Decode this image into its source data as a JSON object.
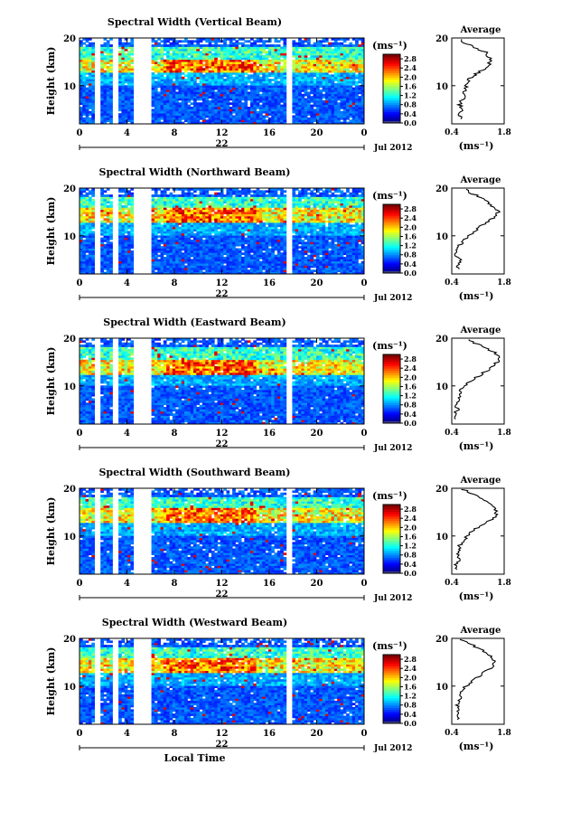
{
  "figure": {
    "x_axis_title": "Local Time",
    "date_label": "Jul 2012",
    "day_label": "22",
    "colorbar_unit": "(ms⁻¹)",
    "profile_title": "Average",
    "profile_unit": "(ms⁻¹)",
    "y_axis_title": "Height (km)"
  },
  "chart_data": [
    {
      "type": "heatmap",
      "title": "Spectral Width (Vertical Beam)",
      "ylabel": "Height (km)",
      "xlabel": "",
      "x_ticks": [
        "0",
        "4",
        "8",
        "12",
        "16",
        "20",
        "0"
      ],
      "y_ticks": [
        "10",
        "20"
      ],
      "xlim": [
        0,
        24
      ],
      "ylim": [
        2,
        20
      ],
      "colorbar": {
        "unit": "(ms⁻¹)",
        "ticks": [
          "2.8",
          "2.4",
          "2.0",
          "1.6",
          "1.2",
          "0.8",
          "0.4",
          "0.0"
        ],
        "range": [
          0,
          3.0
        ]
      },
      "gaps_hours": [
        [
          1.2,
          1.7
        ],
        [
          2.8,
          3.4
        ],
        [
          4.6,
          6.0
        ],
        [
          17.5,
          18.0
        ]
      ],
      "turbulent_layer_km": [
        13,
        15.5
      ],
      "profile": {
        "title": "Average",
        "xlabel": "(ms⁻¹)",
        "xlim": [
          0.4,
          1.8
        ],
        "x_ticks": [
          "0.4",
          "1.8"
        ],
        "y_ticks": [
          "10",
          "20"
        ],
        "height_km": [
          3,
          4,
          5,
          6,
          7,
          8,
          9,
          10,
          11,
          12,
          13,
          14,
          15,
          16,
          17,
          18,
          19,
          20
        ],
        "width": [
          0.65,
          0.6,
          0.7,
          0.62,
          0.68,
          0.72,
          0.75,
          0.78,
          0.82,
          0.95,
          1.15,
          1.35,
          1.42,
          1.4,
          1.3,
          1.0,
          0.75,
          0.6
        ]
      }
    },
    {
      "type": "heatmap",
      "title": "Spectral Width (Northward Beam)",
      "ylabel": "Height (km)",
      "xlabel": "",
      "x_ticks": [
        "0",
        "4",
        "8",
        "12",
        "16",
        "20",
        "0"
      ],
      "y_ticks": [
        "10",
        "20"
      ],
      "xlim": [
        0,
        24
      ],
      "ylim": [
        2,
        20
      ],
      "colorbar": {
        "unit": "(ms⁻¹)",
        "ticks": [
          "2.8",
          "2.4",
          "2.0",
          "1.6",
          "1.2",
          "0.8",
          "0.4",
          "0.0"
        ],
        "range": [
          0,
          3.0
        ]
      },
      "gaps_hours": [
        [
          1.2,
          1.7
        ],
        [
          2.8,
          3.4
        ],
        [
          4.6,
          6.0
        ],
        [
          17.5,
          18.0
        ]
      ],
      "turbulent_layer_km": [
        13,
        16
      ],
      "profile": {
        "title": "Average",
        "xlabel": "(ms⁻¹)",
        "xlim": [
          0.4,
          1.8
        ],
        "x_ticks": [
          "0.4",
          "1.8"
        ],
        "y_ticks": [
          "10",
          "20"
        ],
        "height_km": [
          3,
          4,
          5,
          6,
          7,
          8,
          9,
          10,
          11,
          12,
          13,
          14,
          15,
          16,
          17,
          18,
          19,
          20
        ],
        "width": [
          0.6,
          0.55,
          0.7,
          0.5,
          0.55,
          0.6,
          0.7,
          0.85,
          1.0,
          1.15,
          1.35,
          1.55,
          1.65,
          1.5,
          1.35,
          1.2,
          0.9,
          0.7
        ]
      }
    },
    {
      "type": "heatmap",
      "title": "Spectral Width (Eastward Beam)",
      "ylabel": "Height (km)",
      "xlabel": "",
      "x_ticks": [
        "0",
        "4",
        "8",
        "12",
        "16",
        "20",
        "0"
      ],
      "y_ticks": [
        "10",
        "20"
      ],
      "xlim": [
        0,
        24
      ],
      "ylim": [
        2,
        20
      ],
      "colorbar": {
        "unit": "(ms⁻¹)",
        "ticks": [
          "2.8",
          "2.4",
          "2.0",
          "1.6",
          "1.2",
          "0.8",
          "0.4",
          "0.0"
        ],
        "range": [
          0,
          3.0
        ]
      },
      "gaps_hours": [
        [
          1.2,
          1.7
        ],
        [
          2.8,
          3.4
        ],
        [
          4.6,
          6.0
        ],
        [
          17.5,
          18.0
        ]
      ],
      "turbulent_layer_km": [
        12.5,
        15.5
      ],
      "profile": {
        "title": "Average",
        "xlabel": "(ms⁻¹)",
        "xlim": [
          0.4,
          1.8
        ],
        "x_ticks": [
          "0.4",
          "1.8"
        ],
        "y_ticks": [
          "10",
          "20"
        ],
        "height_km": [
          3,
          4,
          5,
          6,
          7,
          8,
          9,
          10,
          11,
          12,
          13,
          14,
          15,
          16,
          17,
          18,
          19,
          20
        ],
        "width": [
          0.5,
          0.5,
          0.55,
          0.5,
          0.55,
          0.6,
          0.65,
          0.75,
          0.9,
          1.1,
          1.3,
          1.5,
          1.6,
          1.7,
          1.55,
          1.3,
          1.0,
          0.75
        ]
      }
    },
    {
      "type": "heatmap",
      "title": "Spectral Width (Southward Beam)",
      "ylabel": "Height (km)",
      "xlabel": "",
      "x_ticks": [
        "0",
        "4",
        "8",
        "12",
        "16",
        "20",
        "0"
      ],
      "y_ticks": [
        "10",
        "20"
      ],
      "xlim": [
        0,
        24
      ],
      "ylim": [
        2,
        20
      ],
      "colorbar": {
        "unit": "(ms⁻¹)",
        "ticks": [
          "2.8",
          "2.4",
          "2.0",
          "1.6",
          "1.2",
          "0.8",
          "0.4",
          "0.0"
        ],
        "range": [
          0,
          3.0
        ]
      },
      "gaps_hours": [
        [
          1.2,
          1.7
        ],
        [
          2.8,
          3.4
        ],
        [
          4.6,
          6.0
        ],
        [
          17.5,
          18.0
        ]
      ],
      "turbulent_layer_km": [
        13,
        16
      ],
      "profile": {
        "title": "Average",
        "xlabel": "(ms⁻¹)",
        "xlim": [
          0.4,
          1.8
        ],
        "x_ticks": [
          "0.4",
          "1.8"
        ],
        "y_ticks": [
          "10",
          "20"
        ],
        "height_km": [
          3,
          4,
          5,
          6,
          7,
          8,
          9,
          10,
          11,
          12,
          13,
          14,
          15,
          16,
          17,
          18,
          19,
          20
        ],
        "width": [
          0.55,
          0.5,
          0.6,
          0.55,
          0.6,
          0.62,
          0.7,
          0.8,
          0.95,
          1.15,
          1.35,
          1.55,
          1.6,
          1.5,
          1.35,
          1.15,
          0.9,
          0.65
        ]
      }
    },
    {
      "type": "heatmap",
      "title": "Spectral Width (Westward Beam)",
      "ylabel": "Height (km)",
      "xlabel": "Local Time",
      "x_ticks": [
        "0",
        "4",
        "8",
        "12",
        "16",
        "20",
        "0"
      ],
      "y_ticks": [
        "10",
        "20"
      ],
      "xlim": [
        0,
        24
      ],
      "ylim": [
        2,
        20
      ],
      "colorbar": {
        "unit": "(ms⁻¹)",
        "ticks": [
          "2.8",
          "2.4",
          "2.0",
          "1.6",
          "1.2",
          "0.8",
          "0.4",
          "0.0"
        ],
        "range": [
          0,
          3.0
        ]
      },
      "gaps_hours": [
        [
          1.2,
          1.7
        ],
        [
          2.8,
          3.4
        ],
        [
          4.6,
          6.0
        ],
        [
          17.5,
          18.0
        ]
      ],
      "turbulent_layer_km": [
        13,
        16
      ],
      "profile": {
        "title": "Average",
        "xlabel": "(ms⁻¹)",
        "xlim": [
          0.4,
          1.8
        ],
        "x_ticks": [
          "0.4",
          "1.8"
        ],
        "y_ticks": [
          "10",
          "20"
        ],
        "height_km": [
          3,
          4,
          5,
          6,
          7,
          8,
          9,
          10,
          11,
          12,
          13,
          14,
          15,
          16,
          17,
          18,
          19,
          20
        ],
        "width": [
          0.55,
          0.5,
          0.6,
          0.55,
          0.58,
          0.62,
          0.7,
          0.78,
          0.92,
          1.1,
          1.3,
          1.5,
          1.55,
          1.45,
          1.3,
          1.1,
          0.85,
          0.6
        ]
      }
    }
  ]
}
